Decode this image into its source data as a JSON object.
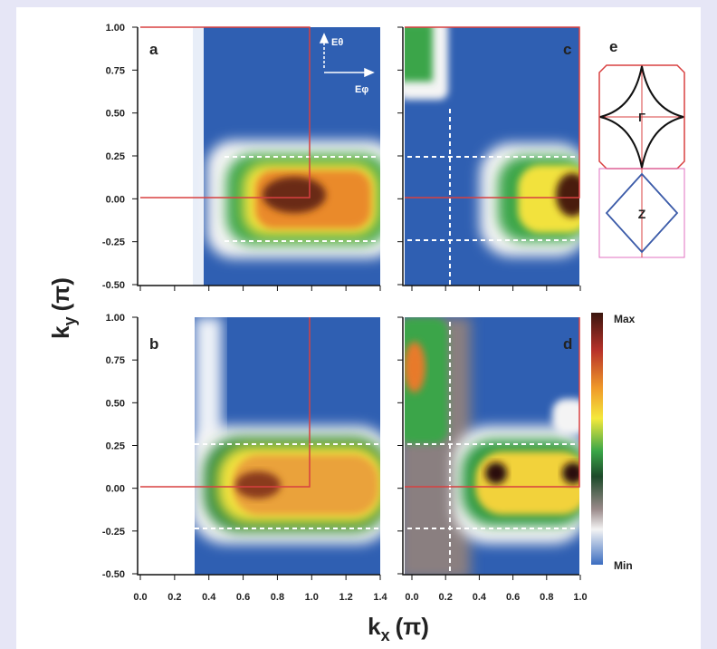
{
  "figure": {
    "panels": [
      "a",
      "b",
      "c",
      "d",
      "e"
    ],
    "y_axis": {
      "main": "k",
      "sub": "y",
      "unit": "(π)"
    },
    "x_axis": {
      "main": "k",
      "sub": "x",
      "unit": "(π)"
    },
    "y_tick_labels": [
      "1.00",
      "0.75",
      "0.50",
      "0.25",
      "0.00",
      "-0.25",
      "-0.50"
    ],
    "x_tick_labels_left": [
      "0.0",
      "0.2",
      "0.4",
      "0.6",
      "0.8",
      "1.0",
      "1.2",
      "1.4"
    ],
    "x_tick_labels_right": [
      "0.0",
      "0.2",
      "0.4",
      "0.6",
      "0.8",
      "1.0"
    ],
    "polarization": {
      "e_theta": "Eθ",
      "e_phi": "Eφ"
    },
    "colorbar": {
      "max": "Max",
      "min": "Min"
    },
    "diagram": {
      "gamma": "Γ",
      "z": "Z"
    }
  }
}
